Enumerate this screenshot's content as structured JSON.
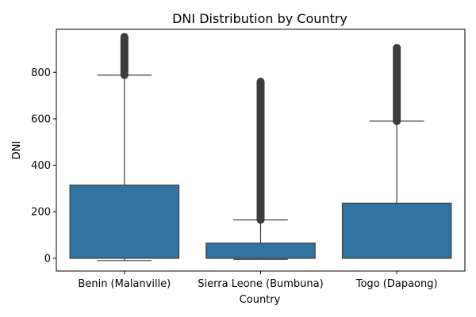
{
  "chart_data": {
    "type": "box",
    "title": "DNI Distribution by Country",
    "xlabel": "Country",
    "ylabel": "DNI",
    "categories": [
      "Benin (Malanville)",
      "Sierra Leone (Bumbuna)",
      "Togo (Dapaong)"
    ],
    "ylim": [
      -55,
      985
    ],
    "yticks": [
      0,
      200,
      400,
      600,
      800
    ],
    "grid": false,
    "box_color": "#3274a1",
    "whisker_color": "#3d3d3d",
    "boxes": [
      {
        "name": "Benin (Malanville)",
        "whisker_low": -10,
        "q1": 0,
        "median": 0,
        "q3": 315,
        "whisker_high": 788,
        "outlier_low": 788,
        "outlier_high": 952
      },
      {
        "name": "Sierra Leone (Bumbuna)",
        "whisker_low": -5,
        "q1": 0,
        "median": 0,
        "q3": 65,
        "whisker_high": 165,
        "outlier_low": 165,
        "outlier_high": 760
      },
      {
        "name": "Togo (Dapaong)",
        "whisker_low": 0,
        "q1": 0,
        "median": 0,
        "q3": 237,
        "whisker_high": 590,
        "outlier_low": 590,
        "outlier_high": 905
      }
    ]
  }
}
